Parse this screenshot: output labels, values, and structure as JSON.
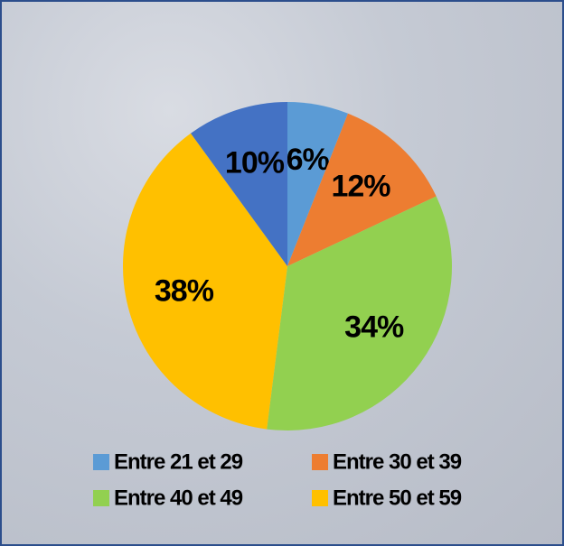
{
  "chart_data": {
    "type": "pie",
    "categories": [
      "Entre 21 et 29",
      "Entre 30 et 39",
      "Entre 40 et 49",
      "Entre 50 et 59",
      null
    ],
    "values": [
      6,
      12,
      34,
      38,
      10
    ],
    "value_labels": [
      "6%",
      "12%",
      "34%",
      "38%",
      "10%"
    ],
    "colors": [
      "#5b9bd5",
      "#ed7d31",
      "#92d050",
      "#ffc000",
      "#4472c4"
    ],
    "legend": "bottom"
  }
}
